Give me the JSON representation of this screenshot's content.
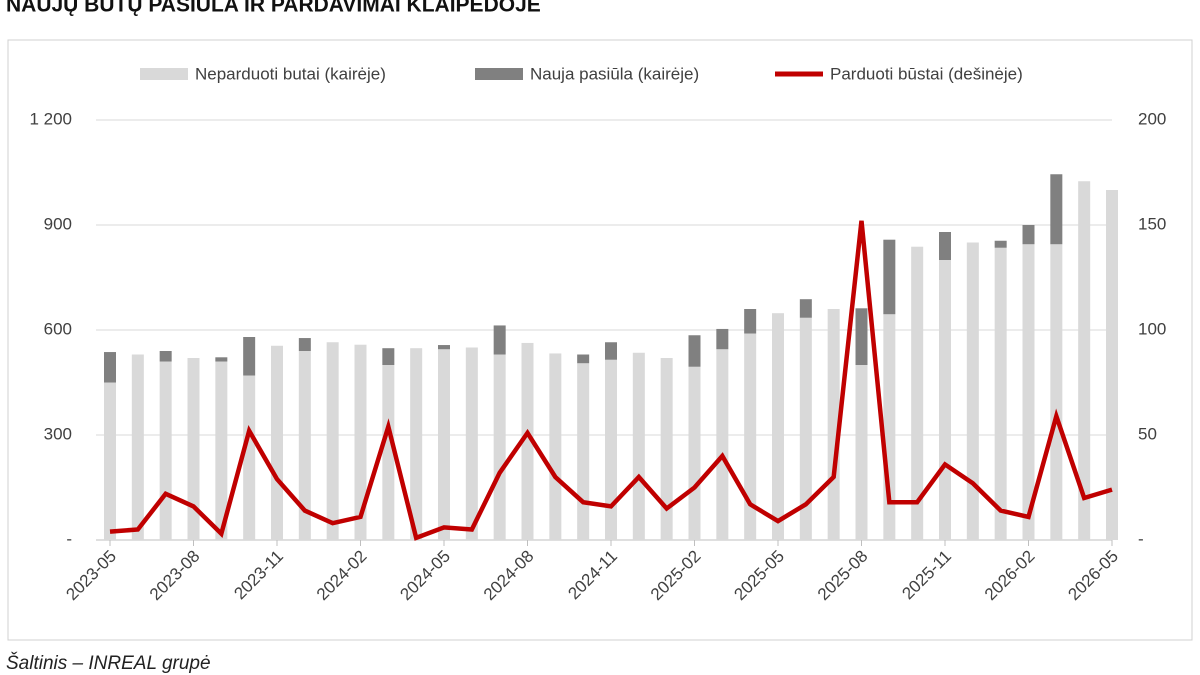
{
  "chart_data": {
    "type": "bar-line",
    "title": "NAUJŲ BŪTŲ PASIŪLA IR PARDAVIMAI KLAIPĖDOJE",
    "source": "Šaltinis – INREAL grupė",
    "categories": [
      "2023-05",
      null,
      null,
      "2023-08",
      null,
      null,
      "2023-11",
      null,
      null,
      "2024-02",
      null,
      null,
      "2024-05",
      null,
      null,
      "2024-08",
      null,
      null,
      "2024-11",
      null,
      null,
      "2025-02",
      null,
      null,
      "2025-05",
      null,
      null,
      "2025-08",
      null,
      null,
      "2025-11",
      null,
      null,
      "2026-02",
      null,
      null,
      "2026-05"
    ],
    "series": [
      {
        "name": "Neparduoti butai (kairėje)",
        "color": "#d9d9d9",
        "axis": "y",
        "stack": true,
        "values": [
          450,
          530,
          510,
          520,
          510,
          470,
          555,
          540,
          565,
          558,
          500,
          548,
          545,
          550,
          530,
          563,
          533,
          505,
          515,
          535,
          520,
          495,
          545,
          590,
          648,
          635,
          660,
          500,
          645,
          838,
          800,
          850,
          835,
          845,
          845,
          1025,
          1000
        ]
      },
      {
        "name": "Nauja pasiūla (kairėje)",
        "color": "#808080",
        "axis": "y",
        "stack": true,
        "values": [
          87,
          0,
          30,
          0,
          12,
          110,
          0,
          37,
          0,
          0,
          48,
          0,
          12,
          0,
          83,
          0,
          0,
          25,
          50,
          0,
          0,
          90,
          58,
          70,
          0,
          53,
          0,
          162,
          213,
          0,
          80,
          0,
          20,
          55,
          200,
          0,
          0
        ]
      },
      {
        "name": "Parduoti būstai (dešinėje)",
        "color": "#c00000",
        "axis": "y2",
        "type": "line",
        "values": [
          4,
          5,
          22,
          16,
          3,
          52,
          29,
          14,
          8,
          11,
          54,
          1,
          6,
          5,
          32,
          51,
          30,
          18,
          16,
          30,
          15,
          25,
          40,
          17,
          9,
          17,
          30,
          152,
          18,
          18,
          36,
          27,
          14,
          11,
          59,
          20,
          24
        ]
      }
    ],
    "ylim": [
      0,
      1200
    ],
    "yticks": [
      {
        "value": 0,
        "label": "-"
      },
      300,
      600,
      900,
      {
        "value": 1200,
        "label": "1 200"
      }
    ],
    "y2lim": [
      0,
      200
    ],
    "y2ticks": [
      {
        "value": 0,
        "label": "-"
      },
      50,
      100,
      150,
      200
    ],
    "grid": true,
    "legend": "top"
  }
}
